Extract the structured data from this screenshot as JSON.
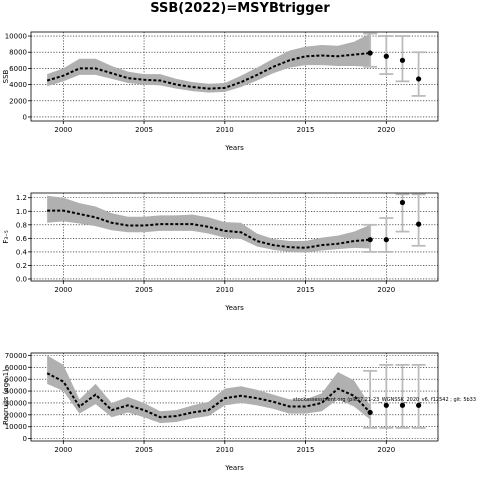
{
  "figure": {
    "title": "SSB(2022)=MSYBtrigger",
    "annotation": "stockassessment.org  (ple27.21-23_WGNSSK_2020_v6, f12542 ; git: 5b33"
  },
  "colors": {
    "band": "#b0b0b0",
    "line": "#000000",
    "forecast_whisker": "#bbbbbb",
    "grid": "#000000"
  },
  "chart_data": [
    {
      "type": "line",
      "title": "",
      "xlabel": "Years",
      "ylabel": "SSB",
      "xlim": [
        1998,
        2023.2
      ],
      "ylim": [
        -500,
        10500
      ],
      "xticks": [
        2000,
        2005,
        2010,
        2015,
        2020
      ],
      "yticks": [
        0,
        2000,
        4000,
        6000,
        8000,
        10000
      ],
      "grid": true,
      "x": [
        1999,
        2000,
        2001,
        2002,
        2003,
        2004,
        2005,
        2006,
        2007,
        2008,
        2009,
        2010,
        2011,
        2012,
        2013,
        2014,
        2015,
        2016,
        2017,
        2018,
        2019
      ],
      "y": [
        4500,
        5100,
        6000,
        6000,
        5400,
        4800,
        4600,
        4500,
        4000,
        3700,
        3500,
        3600,
        4300,
        5200,
        6200,
        7000,
        7500,
        7600,
        7500,
        7700,
        7900
      ],
      "lower": [
        3800,
        4400,
        5200,
        5200,
        4700,
        4200,
        4000,
        3900,
        3500,
        3200,
        3000,
        3100,
        3700,
        4500,
        5400,
        6100,
        6400,
        6400,
        6300,
        6300,
        6200
      ],
      "upper": [
        5300,
        6000,
        7200,
        7200,
        6300,
        5600,
        5300,
        5300,
        4700,
        4300,
        4100,
        4200,
        5100,
        6100,
        7200,
        8200,
        8700,
        8900,
        8800,
        9300,
        10300
      ],
      "forecast": {
        "x": [
          2019,
          2020,
          2021,
          2022
        ],
        "y": [
          7900,
          7500,
          7000,
          4700
        ],
        "lower": [
          6200,
          5300,
          4400,
          2600
        ],
        "upper": [
          10300,
          10000,
          10000,
          8000
        ]
      }
    },
    {
      "type": "line",
      "title": "",
      "xlabel": "Years",
      "ylabel": "F₃₋₅",
      "xlim": [
        1998,
        2023.2
      ],
      "ylim": [
        -0.03,
        1.27
      ],
      "xticks": [
        2000,
        2005,
        2010,
        2015,
        2020
      ],
      "yticks": [
        0.0,
        0.2,
        0.4,
        0.6,
        0.8,
        1.0,
        1.2
      ],
      "ytick_labels": [
        "0.0",
        "0.2",
        "0.4",
        "0.6",
        "0.8",
        "1.0",
        "1.2"
      ],
      "grid": true,
      "x": [
        1999,
        2000,
        2001,
        2002,
        2003,
        2004,
        2005,
        2006,
        2007,
        2008,
        2009,
        2010,
        2011,
        2012,
        2013,
        2014,
        2015,
        2016,
        2017,
        2018,
        2019
      ],
      "y": [
        1.01,
        1.01,
        0.96,
        0.91,
        0.83,
        0.79,
        0.79,
        0.81,
        0.81,
        0.81,
        0.77,
        0.71,
        0.69,
        0.56,
        0.5,
        0.47,
        0.46,
        0.5,
        0.52,
        0.56,
        0.58
      ],
      "lower": [
        0.83,
        0.85,
        0.82,
        0.78,
        0.72,
        0.69,
        0.69,
        0.71,
        0.71,
        0.71,
        0.67,
        0.61,
        0.59,
        0.48,
        0.43,
        0.4,
        0.39,
        0.42,
        0.44,
        0.46,
        0.45
      ],
      "upper": [
        1.23,
        1.2,
        1.12,
        1.07,
        0.97,
        0.92,
        0.92,
        0.94,
        0.94,
        0.95,
        0.91,
        0.84,
        0.83,
        0.67,
        0.59,
        0.56,
        0.56,
        0.61,
        0.64,
        0.7,
        0.8
      ],
      "forecast": {
        "x": [
          2019,
          2020,
          2021,
          2022
        ],
        "y": [
          0.58,
          0.58,
          1.13,
          0.81
        ],
        "lower": [
          0.4,
          0.4,
          0.7,
          0.49
        ],
        "upper": [
          0.8,
          0.9,
          1.25,
          1.25
        ]
      }
    },
    {
      "type": "line",
      "title": "",
      "xlabel": "Years",
      "ylabel": "Recruits (age 1)",
      "xlim": [
        1998,
        2023.2
      ],
      "ylim": [
        -2000,
        72000
      ],
      "xticks": [
        2000,
        2005,
        2010,
        2015,
        2020
      ],
      "yticks": [
        0,
        10000,
        20000,
        30000,
        40000,
        50000,
        60000,
        70000
      ],
      "grid": true,
      "x": [
        1999,
        2000,
        2001,
        2002,
        2003,
        2004,
        2005,
        2006,
        2007,
        2008,
        2009,
        2010,
        2011,
        2012,
        2013,
        2014,
        2015,
        2016,
        2017,
        2018,
        2019
      ],
      "y": [
        55000,
        48000,
        27000,
        37000,
        24000,
        28000,
        24000,
        18000,
        19000,
        22000,
        24000,
        34000,
        36000,
        34000,
        31000,
        27000,
        27000,
        30000,
        42000,
        36000,
        22000
      ],
      "lower": [
        46000,
        40000,
        21000,
        29000,
        18000,
        22000,
        18000,
        13000,
        14000,
        17000,
        19000,
        28000,
        30000,
        28000,
        25000,
        21000,
        21000,
        23000,
        33000,
        27000,
        16000
      ],
      "upper": [
        70000,
        62000,
        33000,
        46000,
        30000,
        35000,
        30000,
        23000,
        24000,
        28000,
        31000,
        42000,
        44000,
        41000,
        37000,
        33000,
        33000,
        38000,
        56000,
        49000,
        28000
      ],
      "forecast": {
        "x": [
          2019,
          2020,
          2021,
          2022
        ],
        "y": [
          22000,
          28000,
          28000,
          28000
        ],
        "lower": [
          9000,
          9000,
          9000,
          9000
        ],
        "upper": [
          57000,
          62000,
          62000,
          62000
        ]
      }
    }
  ]
}
